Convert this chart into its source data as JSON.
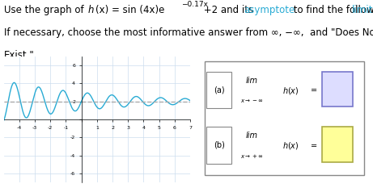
{
  "xlim": [
    -5,
    7
  ],
  "ylim": [
    -7,
    7
  ],
  "asymptote_y": 2,
  "curve_color": "#29ABD4",
  "asymptote_color": "#AAAAAA",
  "grid_color": "#CCDDEE",
  "background_color": "#FFFFFF",
  "font_size_main": 8.5,
  "font_size_small": 7,
  "answer_box_color_a": "#DDDDFF",
  "answer_box_color_b": "#FFFF99",
  "answer_box_edge_a": "#7777CC",
  "answer_box_edge_b": "#AAAA44"
}
